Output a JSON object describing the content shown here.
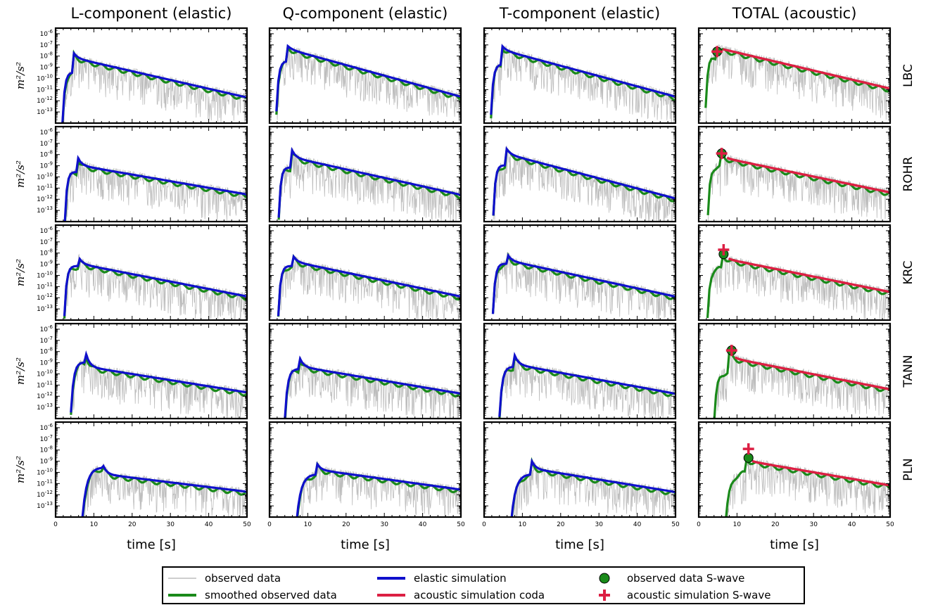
{
  "chart_data": {
    "type": "line",
    "column_titles": [
      "L-component (elastic)",
      "Q-component (elastic)",
      "T-component (elastic)",
      "TOTAL (acoustic)"
    ],
    "row_labels": [
      "LBC",
      "ROHR",
      "KRC",
      "TANN",
      "PLN"
    ],
    "xlabel": "time [s]",
    "ylabel": "m²/s²",
    "xlim": [
      0,
      50
    ],
    "ylim_log10": [
      -14,
      -5.5
    ],
    "x_ticks": [
      "0",
      "10",
      "20",
      "30",
      "40",
      "50"
    ],
    "y_ticks": [
      {
        "base": "10",
        "exp": "-6",
        "value": -6
      },
      {
        "base": "10",
        "exp": "-7",
        "value": -7
      },
      {
        "base": "10",
        "exp": "-8",
        "value": -8
      },
      {
        "base": "10",
        "exp": "-9",
        "value": -9
      },
      {
        "base": "10",
        "exp": "-10",
        "value": -10
      },
      {
        "base": "10",
        "exp": "-11",
        "value": -11
      },
      {
        "base": "10",
        "exp": "-12",
        "value": -12
      },
      {
        "base": "10",
        "exp": "-13",
        "value": -13
      }
    ],
    "colors": {
      "observed": "#bdbdbd",
      "smoothed": "#1a8a1a",
      "elastic": "#1010cc",
      "acoustic": "#dc1f43",
      "swave_point": "#1a8a1a"
    },
    "legend": [
      {
        "label": "observed data",
        "style": "thin-gray-line"
      },
      {
        "label": "smoothed observed data",
        "style": "green-line"
      },
      {
        "label": "elastic simulation",
        "style": "blue-line"
      },
      {
        "label": "acoustic simulation coda",
        "style": "red-line"
      },
      {
        "label": "observed data S-wave",
        "style": "green-circle"
      },
      {
        "label": "acoustic simulation S-wave",
        "style": "red-plus"
      }
    ],
    "stations": [
      {
        "name": "LBC",
        "P": 1.8,
        "S": 4.6,
        "tail": 1.2,
        "swave_time": 4.8,
        "swave_obs": -7.6,
        "swave_sim": -7.6,
        "L": {
          "prelevel": -9.5,
          "peak": -7.7,
          "end": -11.6,
          "first": -8.2
        },
        "Q": {
          "prelevel": -8.5,
          "peak": -7.1,
          "end": -11.5,
          "first": -7.4
        },
        "T": {
          "prelevel": -8.8,
          "peak": -7.1,
          "end": -11.5,
          "first": -7.5
        },
        "TOTAL": {
          "prelevel": -8.0,
          "peak": -7.6,
          "end": -10.8,
          "first": -7.3
        }
      },
      {
        "name": "ROHR",
        "P": 2.4,
        "S": 5.8,
        "tail": 1.1,
        "swave_time": 6.0,
        "swave_obs": -7.9,
        "swave_sim": -7.9,
        "L": {
          "prelevel": -9.6,
          "peak": -8.3,
          "end": -11.5,
          "first": -9.0
        },
        "Q": {
          "prelevel": -9.2,
          "peak": -7.6,
          "end": -11.5,
          "first": -8.3
        },
        "T": {
          "prelevel": -9.0,
          "peak": -7.5,
          "end": -11.8,
          "first": -8.0
        },
        "TOTAL": {
          "prelevel": -9.0,
          "peak": -8.0,
          "end": -11.3,
          "first": -8.3
        }
      },
      {
        "name": "KRC",
        "P": 2.3,
        "S": 6.0,
        "tail": 1.2,
        "swave_time": 6.5,
        "swave_obs": -8.1,
        "swave_sim": -7.7,
        "L": {
          "prelevel": -9.2,
          "peak": -8.4,
          "end": -11.8,
          "first": -9.0
        },
        "Q": {
          "prelevel": -9.2,
          "peak": -8.2,
          "end": -11.8,
          "first": -8.8
        },
        "T": {
          "prelevel": -9.0,
          "peak": -8.1,
          "end": -11.8,
          "first": -8.7
        },
        "TOTAL": {
          "prelevel": -9.3,
          "peak": -8.0,
          "end": -11.4,
          "first": -8.5
        }
      },
      {
        "name": "TANN",
        "P": 4.0,
        "S": 8.0,
        "tail": 1.5,
        "swave_time": 8.6,
        "swave_obs": -7.9,
        "swave_sim": -7.9,
        "L": {
          "prelevel": -9.0,
          "peak": -8.3,
          "end": -11.6,
          "first": -9.4
        },
        "Q": {
          "prelevel": -9.6,
          "peak": -8.7,
          "end": -11.7,
          "first": -9.4
        },
        "T": {
          "prelevel": -9.4,
          "peak": -8.4,
          "end": -11.7,
          "first": -9.2
        },
        "TOTAL": {
          "prelevel": -9.8,
          "peak": -8.0,
          "end": -11.3,
          "first": -8.6
        }
      },
      {
        "name": "PLN",
        "P": 7.0,
        "S": 12.3,
        "tail": 2.5,
        "swave_time": 13.0,
        "swave_obs": -8.7,
        "swave_sim": -7.9,
        "L": {
          "prelevel": -9.6,
          "peak": -9.3,
          "end": -11.7,
          "first": -10.2
        },
        "Q": {
          "prelevel": -10.2,
          "peak": -9.2,
          "end": -11.5,
          "first": -9.8
        },
        "T": {
          "prelevel": -10.2,
          "peak": -8.9,
          "end": -11.7,
          "first": -9.7
        },
        "TOTAL": {
          "prelevel": -9.9,
          "peak": -8.7,
          "end": -11.1,
          "first": -9.0
        }
      }
    ]
  }
}
